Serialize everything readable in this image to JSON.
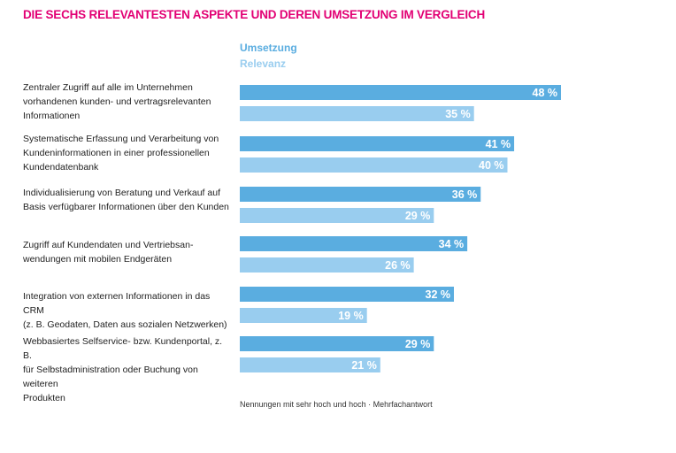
{
  "chart_data": {
    "type": "bar",
    "orientation": "horizontal",
    "title": "DIE SECHS RELEVANTESTEN ASPEKTE UND DEREN UMSETZUNG IM VERGLEICH",
    "categories": [
      "Zentraler Zugriff auf alle im Unternehmen vorhandenen kunden- und vertragsrelevanten Informationen",
      "Systematische Erfassung und Verarbeitung von Kundeninformationen in einer professionellen Kundendatenbank",
      "Individualisierung von Beratung und Verkauf auf Basis verfügbarer Informationen über den Kunden",
      "Zugriff auf Kundendaten und Vertriebsanwendungen mit mobilen Endgeräten",
      "Integration von externen Informationen in das CRM (z. B. Geodaten, Daten aus sozialen Netzwerken)",
      "Webbasiertes Selfservice- bzw. Kundenportal, z. B. für Selbstadministration oder Buchung von weiteren Produkten"
    ],
    "category_lines": [
      [
        "Zentraler Zugriff auf alle im Unternehmen",
        "vorhandenen kunden- und vertragsrelevanten",
        "Informationen"
      ],
      [
        "Systematische Erfassung und Verarbeitung von",
        "Kundeninformationen in einer professionellen",
        "Kundendatenbank"
      ],
      [
        "Individualisierung von Beratung und Verkauf auf",
        "Basis verfügbarer Informationen über den Kunden"
      ],
      [
        "Zugriff auf Kundendaten und Vertriebsan-",
        "wendungen mit mobilen Endgeräten"
      ],
      [
        "Integration von externen Informationen in das CRM",
        "(z. B. Geodaten, Daten aus sozialen Netzwerken)"
      ],
      [
        "Webbasiertes Selfservice- bzw. Kundenportal, z. B.",
        "für Selbstadministration oder Buchung von weiteren",
        "Produkten"
      ]
    ],
    "series": [
      {
        "name": "Umsetzung",
        "color": "#5aade0",
        "values": [
          48,
          41,
          36,
          34,
          32,
          29
        ]
      },
      {
        "name": "Relevanz",
        "color": "#99cdef",
        "values": [
          35,
          40,
          29,
          26,
          19,
          21
        ]
      }
    ],
    "value_labels": [
      [
        "48 %",
        "41 %",
        "36 %",
        "34 %",
        "32 %",
        "29 %"
      ],
      [
        "35 %",
        "40 %",
        "29 %",
        "26 %",
        "19 %",
        "21 %"
      ]
    ],
    "unit": "%",
    "xlim": [
      0,
      48
    ],
    "grid": false,
    "legend": "top-left",
    "footnote": "Nennungen mit sehr hoch und hoch · Mehrfachantwort"
  }
}
